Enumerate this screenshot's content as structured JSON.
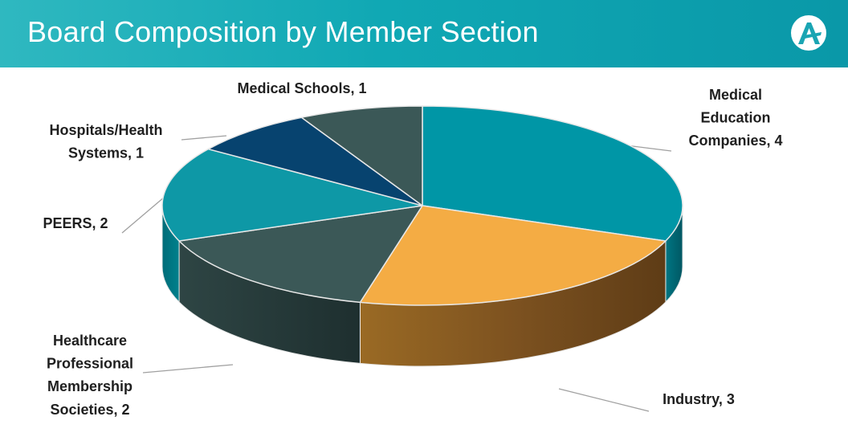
{
  "title": "Board Composition by Member Section",
  "colors": {
    "header_start": "#2fb8c0",
    "header_end": "#0a98a8",
    "leader_line": "#a0a0a0"
  },
  "logo": {
    "icon": "aamc-logo-icon"
  },
  "chart_data": {
    "type": "pie",
    "style": "3d",
    "title": "Board Composition by Member Section",
    "slices": [
      {
        "label": "Medical Education Companies",
        "value": 4,
        "color": "#0096a6",
        "label_text": [
          "Medical",
          "Education",
          "Companies, 4"
        ]
      },
      {
        "label": "Industry",
        "value": 3,
        "color": "#f4ac44",
        "label_text": [
          "Industry, 3"
        ]
      },
      {
        "label": "Healthcare Professional Membership Societies",
        "value": 2,
        "color": "#3b5857",
        "label_text": [
          "Healthcare",
          "Professional",
          "Membership",
          "Societies, 2"
        ]
      },
      {
        "label": "PEERS",
        "value": 2,
        "color": "#0e98a6",
        "label_text": [
          "PEERS, 2"
        ]
      },
      {
        "label": "Hospitals/Health Systems",
        "value": 1,
        "color": "#07436f",
        "label_text": [
          "Hospitals/Health",
          "Systems, 1"
        ]
      },
      {
        "label": "Medical Schools",
        "value": 1,
        "color": "#3b5857",
        "label_text": [
          "Medical Schools, 1"
        ]
      }
    ]
  }
}
